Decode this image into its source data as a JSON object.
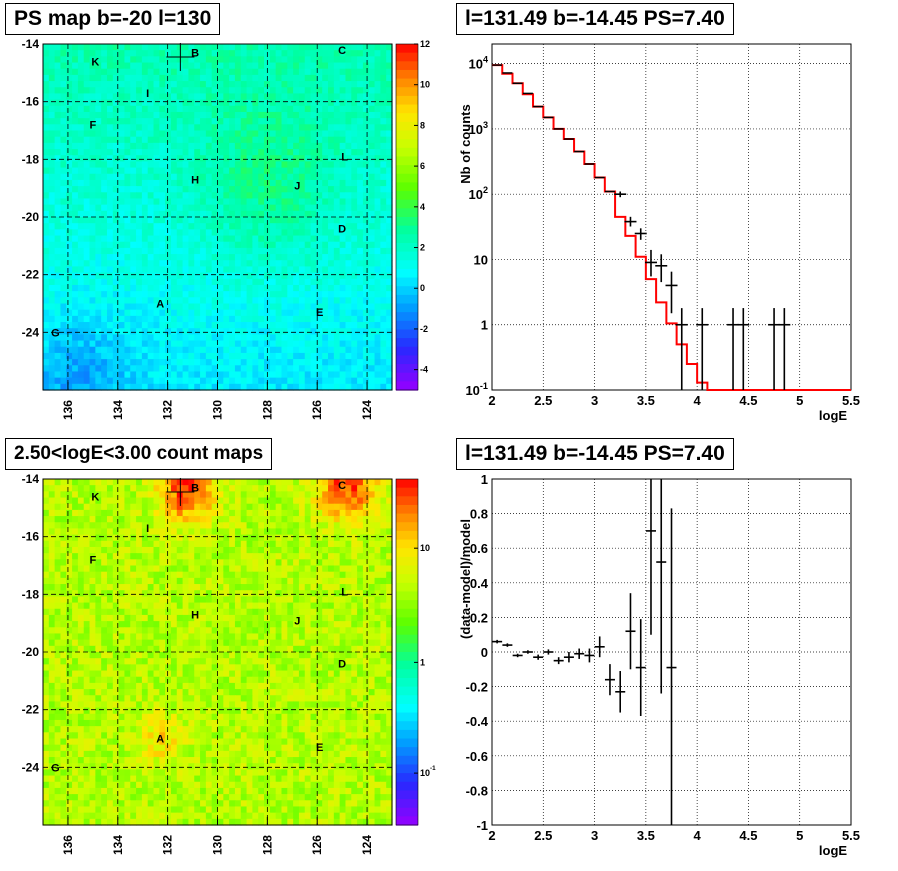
{
  "panels": {
    "ps_map_title": "PS map b=-20 l=130",
    "spectrum_title": "l=131.49 b=-14.45 PS=7.40",
    "count_map_title": "2.50<logE<3.00 count maps",
    "residual_title": "l=131.49 b=-14.45 PS=7.40"
  },
  "map_markers": [
    "A",
    "B",
    "C",
    "D",
    "E",
    "F",
    "G",
    "H",
    "I",
    "J",
    "K",
    "L"
  ],
  "colors": {
    "hist_model": "#ff0000",
    "data_points": "#000000",
    "grid": "#000000"
  },
  "chart_data": [
    {
      "type": "heatmap",
      "title": "PS map b=-20 l=130",
      "x_ticks": [
        "136",
        "134",
        "132",
        "130",
        "128",
        "126",
        "124"
      ],
      "y_ticks": [
        "-14",
        "-16",
        "-18",
        "-20",
        "-22",
        "-24"
      ],
      "xlim": [
        137,
        123
      ],
      "ylim": [
        -26,
        -14
      ],
      "colorbar": {
        "min": -5,
        "max": 12,
        "ticks": [
          "12",
          "10",
          "8",
          "6",
          "4",
          "2",
          "0",
          "-2",
          "-4"
        ]
      },
      "grid": true
    },
    {
      "type": "line",
      "title": "l=131.49 b=-14.45 PS=7.40",
      "xlabel": "logE",
      "ylabel": "Nb of counts",
      "xlim": [
        2,
        5.5
      ],
      "ylim": [
        0.1,
        20000
      ],
      "yscale": "log",
      "x_ticks": [
        "2",
        "2.5",
        "3",
        "3.5",
        "4",
        "4.5",
        "5",
        "5.5"
      ],
      "y_ticks": [
        "10^4",
        "10^3",
        "10^2",
        "10",
        "1",
        "10^-1"
      ],
      "model_step": {
        "edges": [
          2.0,
          2.1,
          2.2,
          2.3,
          2.4,
          2.5,
          2.6,
          2.7,
          2.8,
          2.9,
          3.0,
          3.1,
          3.2,
          3.3,
          3.4,
          3.5,
          3.6,
          3.7,
          3.8,
          3.9,
          4.0,
          4.1,
          5.5
        ],
        "values": [
          9500,
          7000,
          5000,
          3400,
          2200,
          1500,
          1000,
          700,
          450,
          290,
          180,
          110,
          45,
          23,
          11,
          5,
          2.2,
          1.05,
          0.5,
          0.25,
          0.13,
          0.1
        ]
      },
      "data_points": [
        {
          "x": 3.25,
          "y": 100,
          "lo": 90,
          "hi": 110
        },
        {
          "x": 3.35,
          "y": 38,
          "lo": 32,
          "hi": 45
        },
        {
          "x": 3.45,
          "y": 25,
          "lo": 20,
          "hi": 30
        },
        {
          "x": 3.55,
          "y": 9,
          "lo": 5.5,
          "hi": 14
        },
        {
          "x": 3.65,
          "y": 8,
          "lo": 4.5,
          "hi": 12
        },
        {
          "x": 3.75,
          "y": 4,
          "lo": 1.5,
          "hi": 6.5
        },
        {
          "x": 3.85,
          "y": 1,
          "lo": 0.1,
          "hi": 1.8
        },
        {
          "x": 4.05,
          "y": 1,
          "lo": 0.1,
          "hi": 1.8
        },
        {
          "x": 4.35,
          "y": 1,
          "lo": 0.1,
          "hi": 1.8
        },
        {
          "x": 4.45,
          "y": 1,
          "lo": 0.1,
          "hi": 1.8
        },
        {
          "x": 4.75,
          "y": 1,
          "lo": 0.1,
          "hi": 1.8
        },
        {
          "x": 4.85,
          "y": 1,
          "lo": 0.1,
          "hi": 1.8
        }
      ],
      "grid": true
    },
    {
      "type": "heatmap",
      "title": "2.50<logE<3.00 count maps",
      "x_ticks": [
        "136",
        "134",
        "132",
        "130",
        "128",
        "126",
        "124"
      ],
      "y_ticks": [
        "-14",
        "-16",
        "-18",
        "-20",
        "-22",
        "-24"
      ],
      "xlim": [
        137,
        123
      ],
      "ylim": [
        -26,
        -14
      ],
      "colorbar": {
        "scale": "log",
        "ticks": [
          "10",
          "1",
          "10^-1"
        ]
      },
      "grid": true
    },
    {
      "type": "scatter",
      "title": "l=131.49 b=-14.45 PS=7.40",
      "xlabel": "logE",
      "ylabel": "(data-model)/model",
      "xlim": [
        2,
        5.5
      ],
      "ylim": [
        -1,
        1
      ],
      "x_ticks": [
        "2",
        "2.5",
        "3",
        "3.5",
        "4",
        "4.5",
        "5",
        "5.5"
      ],
      "y_ticks": [
        "1",
        "0.8",
        "0.6",
        "0.4",
        "0.2",
        "0",
        "-0.2",
        "-0.4",
        "-0.6",
        "-0.8",
        "-1"
      ],
      "points": [
        {
          "x": 2.05,
          "y": 0.06,
          "err": 0.01
        },
        {
          "x": 2.15,
          "y": 0.04,
          "err": 0.01
        },
        {
          "x": 2.25,
          "y": -0.02,
          "err": 0.01
        },
        {
          "x": 2.35,
          "y": 0.0,
          "err": 0.01
        },
        {
          "x": 2.45,
          "y": -0.03,
          "err": 0.015
        },
        {
          "x": 2.55,
          "y": 0.0,
          "err": 0.015
        },
        {
          "x": 2.65,
          "y": -0.05,
          "err": 0.02
        },
        {
          "x": 2.75,
          "y": -0.03,
          "err": 0.03
        },
        {
          "x": 2.85,
          "y": -0.01,
          "err": 0.03
        },
        {
          "x": 2.95,
          "y": -0.02,
          "err": 0.04
        },
        {
          "x": 3.05,
          "y": 0.03,
          "err": 0.06
        },
        {
          "x": 3.15,
          "y": -0.16,
          "err": 0.09
        },
        {
          "x": 3.25,
          "y": -0.23,
          "err": 0.12
        },
        {
          "x": 3.35,
          "y": 0.12,
          "err": 0.22
        },
        {
          "x": 3.45,
          "y": -0.09,
          "err": 0.28
        },
        {
          "x": 3.55,
          "y": 0.7,
          "err": 0.6
        },
        {
          "x": 3.65,
          "y": 0.52,
          "err": 0.76
        },
        {
          "x": 3.75,
          "y": -0.09,
          "err": 0.92
        }
      ],
      "grid": true
    }
  ]
}
